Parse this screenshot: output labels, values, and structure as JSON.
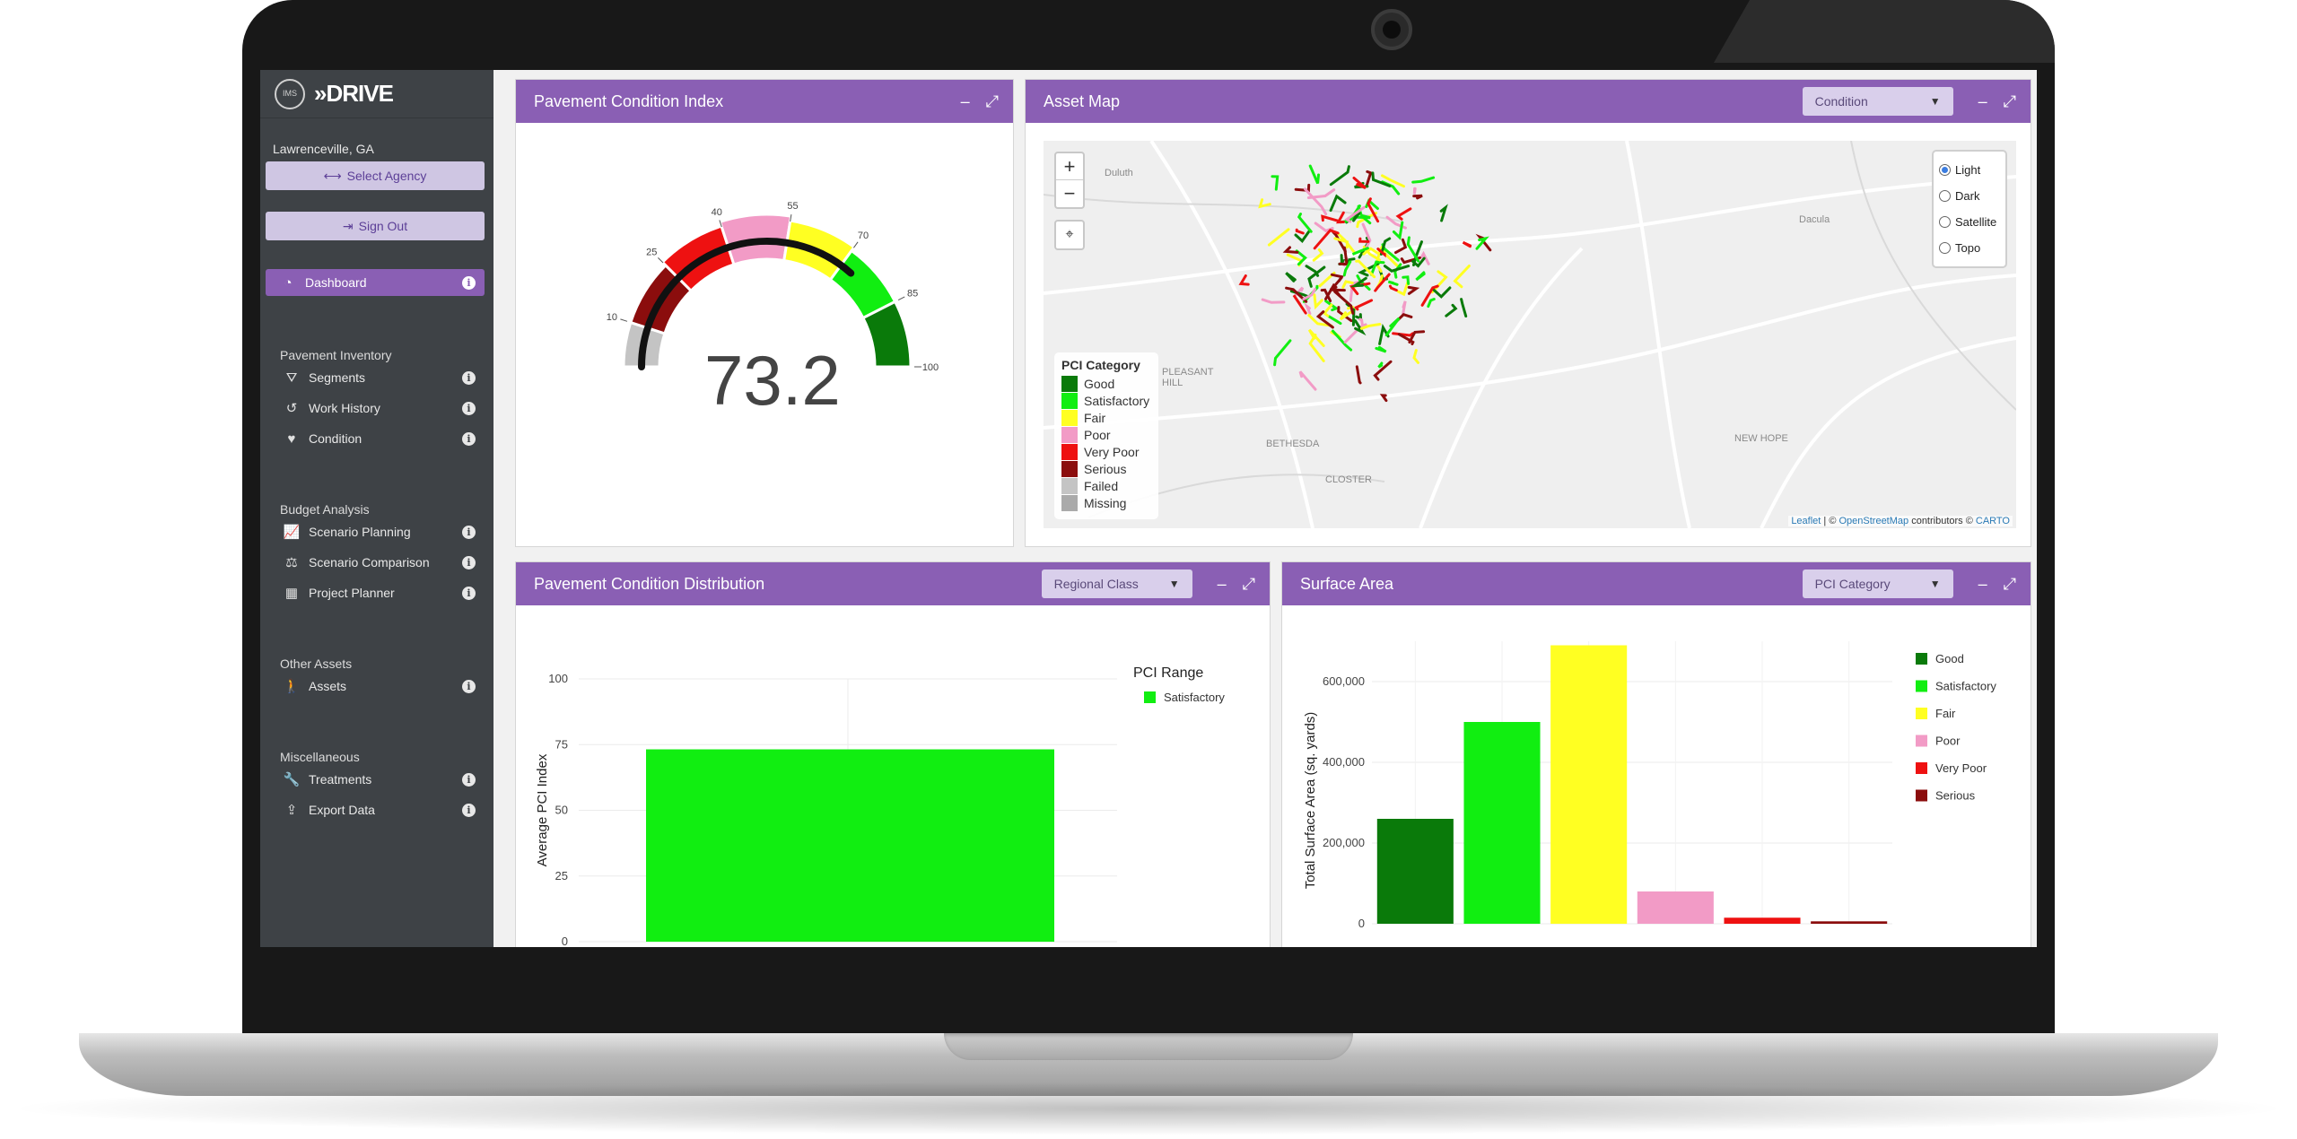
{
  "sidebar": {
    "brand": "»DRIVE",
    "logo_badge": "IMS",
    "agency": "Lawrenceville, GA",
    "select_agency": "Select Agency",
    "sign_out": "Sign Out",
    "dashboard": "Dashboard",
    "sections": [
      {
        "title": "Pavement Inventory",
        "items": [
          {
            "label": "Segments",
            "icon": "road-icon"
          },
          {
            "label": "Work History",
            "icon": "history-icon"
          },
          {
            "label": "Condition",
            "icon": "heartbeat-icon"
          }
        ]
      },
      {
        "title": "Budget Analysis",
        "items": [
          {
            "label": "Scenario Planning",
            "icon": "line-chart-icon"
          },
          {
            "label": "Scenario Comparison",
            "icon": "balance-scale-icon"
          },
          {
            "label": "Project Planner",
            "icon": "calendar-icon"
          }
        ]
      },
      {
        "title": "Other Assets",
        "items": [
          {
            "label": "Assets",
            "icon": "walking-icon"
          }
        ]
      },
      {
        "title": "Miscellaneous",
        "items": [
          {
            "label": "Treatments",
            "icon": "wrench-icon"
          },
          {
            "label": "Export Data",
            "icon": "upload-icon"
          }
        ]
      }
    ]
  },
  "pci_panel": {
    "title": "Pavement Condition Index",
    "value": "73.2",
    "gauge": {
      "min": 0,
      "max": 100,
      "value": 73.2,
      "bands": [
        {
          "from": 0,
          "to": 10,
          "color": "#c4c4c4"
        },
        {
          "from": 10,
          "to": 25,
          "color": "#8b0d0d"
        },
        {
          "from": 25,
          "to": 40,
          "color": "#ee1111"
        },
        {
          "from": 40,
          "to": 55,
          "color": "#f29bc6"
        },
        {
          "from": 55,
          "to": 70,
          "color": "#ffff22"
        },
        {
          "from": 70,
          "to": 85,
          "color": "#11ee11"
        },
        {
          "from": 85,
          "to": 100,
          "color": "#0a7a0a"
        }
      ],
      "tick_labels": [
        "10",
        "25",
        "40",
        "55",
        "70",
        "85",
        "100"
      ]
    }
  },
  "map_panel": {
    "title": "Asset Map",
    "dropdown": "Condition",
    "layers": [
      {
        "label": "Light",
        "selected": true
      },
      {
        "label": "Dark",
        "selected": false
      },
      {
        "label": "Satellite",
        "selected": false
      },
      {
        "label": "Topo",
        "selected": false
      }
    ],
    "legend_title": "PCI Category",
    "legend": [
      {
        "label": "Good",
        "color": "#0a7a0a"
      },
      {
        "label": "Satisfactory",
        "color": "#11ee11"
      },
      {
        "label": "Fair",
        "color": "#ffff22"
      },
      {
        "label": "Poor",
        "color": "#f29bc6"
      },
      {
        "label": "Very Poor",
        "color": "#ee1111"
      },
      {
        "label": "Serious",
        "color": "#8b0d0d"
      },
      {
        "label": "Failed",
        "color": "#c4c4c4"
      },
      {
        "label": "Missing",
        "color": "#aaaaaa"
      }
    ],
    "places": [
      "Duluth",
      "Dacula",
      "PLEASANT HILL",
      "BETHESDA",
      "CLOSTER",
      "NEW HOPE"
    ],
    "zoom_in": "+",
    "zoom_out": "−",
    "attribution": {
      "leaflet": "Leaflet",
      "sep": " | © ",
      "osm": "OpenStreetMap",
      "mid": " contributors © ",
      "carto": "CARTO"
    }
  },
  "dist_panel": {
    "title": "Pavement Condition Distribution",
    "dropdown": "Regional Class"
  },
  "surf_panel": {
    "title": "Surface Area",
    "dropdown": "PCI Category"
  },
  "chart_data": [
    {
      "type": "bar",
      "title": "",
      "xlabel": "",
      "ylabel": "Average PCI Index",
      "categories": [
        ""
      ],
      "series": [
        {
          "name": "Satisfactory",
          "values": [
            73.2
          ]
        }
      ],
      "legend_title": "PCI Range",
      "legend_position": "top-right",
      "ylim": [
        0,
        100
      ],
      "yticks": [
        0,
        25,
        50,
        75,
        100
      ],
      "grid": true,
      "colors": [
        "#11ee11"
      ]
    },
    {
      "type": "bar",
      "title": "",
      "xlabel": "",
      "ylabel": "Total Surface Area (sq. yards)",
      "categories": [
        "Good",
        "Satisfactory",
        "Fair",
        "Poor",
        "Very Poor",
        "Serious"
      ],
      "values": [
        260000,
        500000,
        690000,
        80000,
        15000,
        6000
      ],
      "colors": [
        "#0a7a0a",
        "#11ee11",
        "#ffff22",
        "#f29bc6",
        "#ee1111",
        "#8b0d0d"
      ],
      "ylim": [
        0,
        700000
      ],
      "yticks": [
        0,
        200000,
        400000,
        600000
      ],
      "ytick_labels": [
        "0",
        "200,000",
        "400,000",
        "600,000"
      ],
      "legend_position": "right",
      "grid": true
    }
  ]
}
